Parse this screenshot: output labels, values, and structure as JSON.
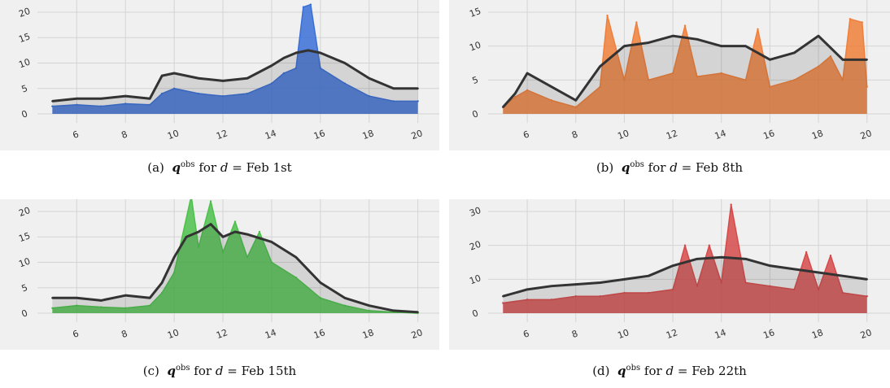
{
  "chart_data": [
    {
      "type": "line",
      "caption": {
        "label": "(a)",
        "var_main": "q",
        "var_sup": "obs",
        "mid": "for",
        "d_var": "d",
        "eq": "=",
        "date": "Feb 1st"
      },
      "xlim": [
        5,
        20
      ],
      "ylim": [
        0,
        20
      ],
      "xticks": [
        6,
        8,
        10,
        12,
        14,
        16,
        18,
        20
      ],
      "yticks": [
        0,
        5,
        10,
        15,
        20
      ],
      "grid": true,
      "series": [
        {
          "role": "observed",
          "color": "#3a6fd6",
          "x": [
            5,
            6,
            7,
            8,
            9,
            9.5,
            10,
            11,
            12,
            13,
            14,
            14.5,
            15,
            15.3,
            15.6,
            16,
            17,
            18,
            19,
            20
          ],
          "y": [
            1.5,
            1.8,
            1.5,
            2.0,
            1.8,
            4.0,
            5.0,
            4.0,
            3.5,
            4.0,
            6.0,
            8.0,
            9.0,
            21.0,
            21.5,
            9.0,
            6.0,
            3.5,
            2.5,
            2.5
          ]
        },
        {
          "role": "predicted",
          "color": "#333333",
          "x": [
            5,
            6,
            7,
            8,
            9,
            9.5,
            10,
            11,
            12,
            13,
            14,
            14.5,
            15,
            15.5,
            16,
            17,
            18,
            19,
            20
          ],
          "y": [
            2.5,
            3.0,
            3.0,
            3.5,
            3.0,
            7.5,
            8.0,
            7.0,
            6.5,
            7.0,
            9.5,
            11.0,
            12.0,
            12.5,
            12.0,
            10.0,
            7.0,
            5.0,
            5.0
          ]
        }
      ]
    },
    {
      "type": "line",
      "caption": {
        "label": "(b)",
        "var_main": "q",
        "var_sup": "obs",
        "mid": "for",
        "d_var": "d",
        "eq": "=",
        "date": "Feb 8th"
      },
      "xlim": [
        5,
        20
      ],
      "ylim": [
        0,
        15
      ],
      "xticks": [
        6,
        8,
        10,
        12,
        14,
        16,
        18,
        20
      ],
      "yticks": [
        0,
        5,
        10,
        15
      ],
      "grid": true,
      "series": [
        {
          "role": "observed",
          "color": "#ef7f3a",
          "x": [
            5,
            5.5,
            6,
            7,
            8,
            9,
            9.3,
            10,
            10.5,
            11,
            12,
            12.5,
            13,
            14,
            15,
            15.5,
            16,
            17,
            18,
            18.5,
            19,
            19.3,
            19.8,
            20
          ],
          "y": [
            1.0,
            2.5,
            3.5,
            2.0,
            1.0,
            4.0,
            14.5,
            5.0,
            13.5,
            5.0,
            6.0,
            13.0,
            5.5,
            6.0,
            5.0,
            12.5,
            4.0,
            5.0,
            7.0,
            8.5,
            5.0,
            14.0,
            13.5,
            4.0
          ]
        },
        {
          "role": "predicted",
          "color": "#333333",
          "x": [
            5,
            5.5,
            6,
            7,
            8,
            9,
            10,
            11,
            12,
            13,
            14,
            15,
            16,
            17,
            18,
            19,
            20
          ],
          "y": [
            1.0,
            3.0,
            6.0,
            4.0,
            2.0,
            7.0,
            10.0,
            10.5,
            11.5,
            11.0,
            10.0,
            10.0,
            8.0,
            9.0,
            11.5,
            8.0,
            8.0
          ]
        }
      ]
    },
    {
      "type": "line",
      "caption": {
        "label": "(c)",
        "var_main": "q",
        "var_sup": "obs",
        "mid": "for",
        "d_var": "d",
        "eq": "=",
        "date": "Feb 15th"
      },
      "xlim": [
        5,
        20
      ],
      "ylim": [
        0,
        20
      ],
      "xticks": [
        6,
        8,
        10,
        12,
        14,
        16,
        18,
        20
      ],
      "yticks": [
        0,
        5,
        10,
        15,
        20
      ],
      "grid": true,
      "series": [
        {
          "role": "observed",
          "color": "#4cc14c",
          "x": [
            5,
            6,
            7,
            8,
            9,
            9.5,
            10,
            10.7,
            11,
            11.5,
            12,
            12.5,
            13,
            13.5,
            14,
            15,
            16,
            17,
            18,
            19,
            20
          ],
          "y": [
            1.0,
            1.5,
            1.2,
            1.0,
            1.5,
            4.0,
            8.0,
            23.0,
            13.0,
            22.0,
            12.0,
            18.0,
            11.0,
            16.0,
            10.0,
            7.0,
            3.0,
            1.5,
            0.5,
            0.2,
            0.0
          ]
        },
        {
          "role": "predicted",
          "color": "#333333",
          "x": [
            5,
            6,
            7,
            8,
            9,
            9.5,
            10,
            10.5,
            11,
            11.5,
            12,
            12.5,
            13,
            14,
            15,
            16,
            17,
            18,
            19,
            20
          ],
          "y": [
            3.0,
            3.0,
            2.5,
            3.5,
            3.0,
            6.0,
            11.0,
            15.0,
            16.0,
            17.5,
            15.0,
            16.0,
            15.5,
            14.0,
            11.0,
            6.0,
            3.0,
            1.5,
            0.5,
            0.2
          ]
        }
      ]
    },
    {
      "type": "line",
      "caption": {
        "label": "(d)",
        "var_main": "q",
        "var_sup": "obs",
        "mid": "for",
        "d_var": "d",
        "eq": "=",
        "date": "Feb 22th"
      },
      "xlim": [
        5,
        20
      ],
      "ylim": [
        0,
        30
      ],
      "xticks": [
        6,
        8,
        10,
        12,
        14,
        16,
        18,
        20
      ],
      "yticks": [
        0,
        10,
        20,
        30
      ],
      "grid": true,
      "series": [
        {
          "role": "observed",
          "color": "#d64a4a",
          "x": [
            5,
            6,
            7,
            8,
            9,
            10,
            11,
            12,
            12.5,
            13,
            13.5,
            14,
            14.4,
            15,
            16,
            17,
            17.5,
            18,
            18.5,
            19,
            20
          ],
          "y": [
            3.0,
            4.0,
            4.0,
            5.0,
            5.0,
            6.0,
            6.0,
            7.0,
            20.0,
            8.0,
            20.0,
            9.0,
            32.0,
            9.0,
            8.0,
            7.0,
            18.0,
            7.0,
            17.0,
            6.0,
            5.0
          ]
        },
        {
          "role": "predicted",
          "color": "#333333",
          "x": [
            5,
            6,
            7,
            8,
            9,
            10,
            11,
            12,
            13,
            14,
            15,
            16,
            17,
            18,
            19,
            20
          ],
          "y": [
            5.0,
            7.0,
            8.0,
            8.5,
            9.0,
            10.0,
            11.0,
            14.0,
            16.0,
            16.5,
            16.0,
            14.0,
            13.0,
            12.0,
            11.0,
            10.0
          ]
        }
      ]
    }
  ],
  "colors": {
    "plot_bg": "#f0f0f0",
    "grid": "#d4d4d4",
    "tick_text": "#333333"
  }
}
